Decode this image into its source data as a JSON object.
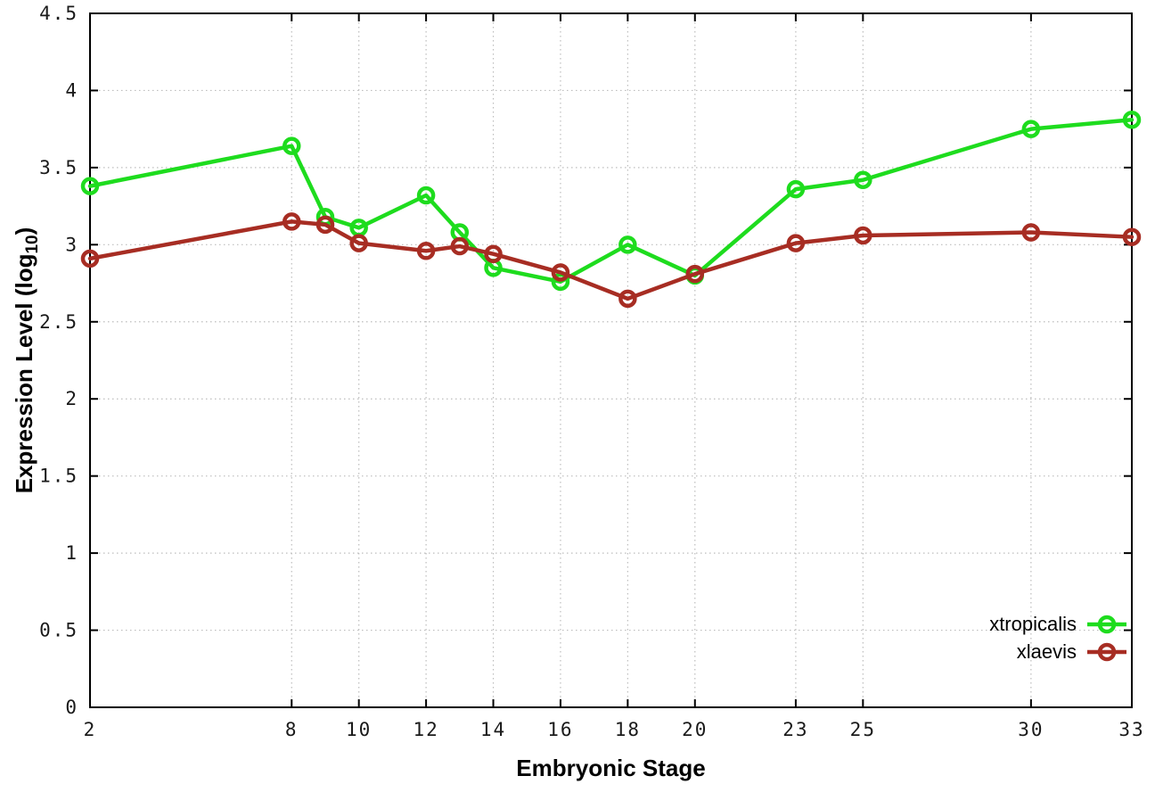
{
  "chart_data": {
    "type": "line",
    "title": "",
    "xlabel": "Embryonic Stage",
    "ylabel": "Expression Level (log10)",
    "ylabel_parts": {
      "main": "Expression Level (log",
      "sub": "10",
      "end": ")"
    },
    "xlim": [
      2,
      33
    ],
    "ylim": [
      0,
      4.5
    ],
    "grid": true,
    "legend_position": "bottom-right",
    "x": [
      2,
      8,
      9,
      10,
      12,
      13,
      14,
      16,
      18,
      20,
      23,
      25,
      30,
      33
    ],
    "xticks": [
      2,
      8,
      10,
      12,
      14,
      16,
      18,
      20,
      23,
      25,
      30,
      33
    ],
    "yticks": [
      0,
      0.5,
      1,
      1.5,
      2,
      2.5,
      3,
      3.5,
      4,
      4.5
    ],
    "series": [
      {
        "name": "xtropicalis",
        "color": "#1edc1e",
        "values": [
          3.38,
          3.64,
          3.18,
          3.11,
          3.32,
          3.08,
          2.85,
          2.76,
          3.0,
          2.8,
          3.36,
          3.42,
          3.75,
          3.81
        ]
      },
      {
        "name": "xlaevis",
        "color": "#a72d23",
        "values": [
          2.91,
          3.15,
          3.13,
          3.01,
          2.96,
          2.99,
          2.94,
          2.82,
          2.65,
          2.81,
          3.01,
          3.06,
          3.08,
          3.05
        ]
      }
    ],
    "colors": {
      "background": "#ffffff",
      "grid": "#bdbdbd",
      "axis": "#000000",
      "tick_label": "#1a1a1a"
    }
  }
}
